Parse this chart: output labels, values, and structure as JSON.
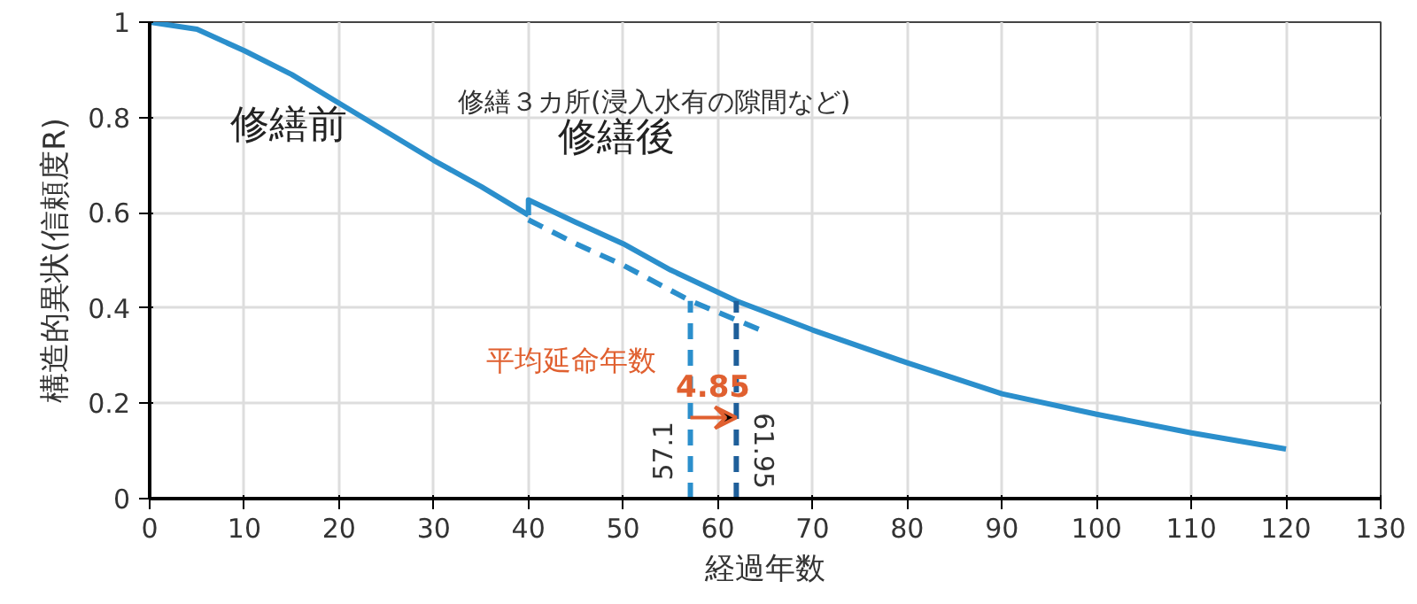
{
  "chart_data": {
    "type": "line",
    "xlabel": "経過年数",
    "ylabel": "構造的異状(信頼度R)",
    "xlim": [
      0,
      130
    ],
    "xticks": [
      0,
      10,
      20,
      30,
      40,
      50,
      60,
      70,
      80,
      90,
      100,
      110,
      120,
      130
    ],
    "ylim": [
      0,
      1
    ],
    "yticks": [
      0,
      {
        "value": 0.2,
        "label": "0.2"
      },
      {
        "value": 0.4,
        "label": "0.4"
      },
      {
        "value": 0.6,
        "label": "0.6"
      },
      {
        "value": 0.8,
        "label": "0.8"
      },
      1
    ],
    "grid": true,
    "marker": "none",
    "series": [
      {
        "name": "修繕前",
        "color": "#2b8fcc",
        "line_style": "solid",
        "x": [
          0,
          5,
          10,
          15,
          20,
          25,
          30,
          35,
          40
        ],
        "values": [
          1,
          0.985,
          0.94,
          0.89,
          0.83,
          0.77,
          0.71,
          0.655,
          0.595
        ]
      },
      {
        "name": "修繕後",
        "color": "#2b8fcc",
        "line_style": "solid",
        "x": [
          40,
          40,
          45,
          50,
          55,
          61.95,
          70,
          80,
          90,
          100,
          110,
          120
        ],
        "values": [
          0.595,
          0.627,
          0.58,
          0.535,
          0.48,
          0.415,
          0.354,
          0.285,
          0.22,
          0.177,
          0.138,
          0.104
        ]
      },
      {
        "color": "#2b8fcc",
        "line_style": "dashed",
        "x": [
          40,
          45,
          50,
          57.1,
          65
        ],
        "values": [
          0.585,
          0.535,
          0.49,
          0.415,
          0.35
        ]
      },
      {
        "color": "#2b8fcc",
        "line_style": "dashed",
        "x": [
          57.1,
          57.1
        ],
        "values": [
          0,
          0.415
        ]
      },
      {
        "color": "#1f5f9a",
        "line_style": "dashed",
        "x": [
          61.95,
          61.95
        ],
        "values": [
          0,
          0.415
        ]
      }
    ],
    "annotations": [
      "修繕３カ所(浸入水有の隙間など)",
      "平均延命年数",
      "4.85",
      {
        "text": "57.1",
        "x": 57.1,
        "y": 0.1
      },
      {
        "text": "61.95",
        "x": 61.95,
        "y": 0.1
      }
    ]
  }
}
